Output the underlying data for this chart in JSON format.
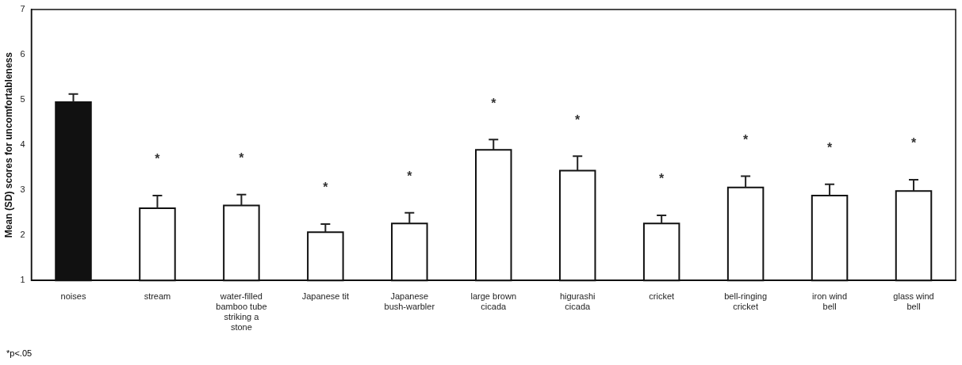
{
  "chart_data": {
    "type": "bar",
    "ylabel": "Mean (SD) scores for uncomfortableness",
    "categories": [
      "noises",
      "stream",
      "water-filled bamboo tube striking a stone",
      "Japanese tit",
      "Japanese bush-warbler",
      "large brown cicada",
      "higurashi cicada",
      "cricket",
      "bell-ringing cricket",
      "iron wind bell",
      "glass wind bell"
    ],
    "values": [
      4.95,
      2.6,
      2.66,
      2.07,
      2.26,
      3.89,
      3.43,
      2.26,
      3.06,
      2.88,
      2.98
    ],
    "errors": [
      [
        4.95,
        5.13
      ],
      [
        2.6,
        2.88
      ],
      [
        2.66,
        2.9
      ],
      [
        2.07,
        2.25
      ],
      [
        2.26,
        2.5
      ],
      [
        3.89,
        4.12
      ],
      [
        3.43,
        3.75
      ],
      [
        2.26,
        2.44
      ],
      [
        3.06,
        3.31
      ],
      [
        2.88,
        3.13
      ],
      [
        2.98,
        3.23
      ]
    ],
    "colors": [
      "#111111",
      "#ffffff",
      "#ffffff",
      "#ffffff",
      "#ffffff",
      "#ffffff",
      "#ffffff",
      "#ffffff",
      "#ffffff",
      "#ffffff",
      "#ffffff"
    ],
    "ylim": [
      1,
      7
    ],
    "yticks": [
      1,
      2,
      3,
      4,
      5,
      6,
      7
    ],
    "grid": false,
    "legend": false,
    "annotations": [
      "*",
      "*",
      "*",
      "*",
      "*",
      "*",
      "*",
      "*",
      "*",
      "*",
      "*p<.05"
    ]
  }
}
